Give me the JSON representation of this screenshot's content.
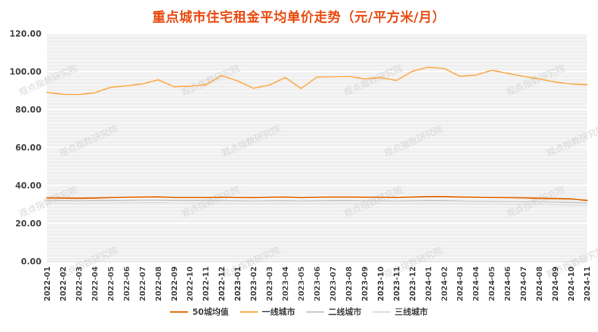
{
  "page": {
    "background": "#ffffff"
  },
  "chart_data": {
    "type": "line",
    "title": "重点城市住宅租金平均单价走势（元/平方米/月）",
    "title_color": "#e8490f",
    "watermark": "观点指数研究院",
    "grid": true,
    "legend_position": "bottom",
    "plot_background": "#efefef",
    "gridline_color": "#ffffff",
    "axis_label_color": "#3f3f3f",
    "ylim": [
      0,
      120
    ],
    "ytick_step": 20,
    "ytick_labels": [
      "0.00",
      "20.00",
      "40.00",
      "60.00",
      "80.00",
      "100.00",
      "120.00"
    ],
    "x": [
      "2022-01",
      "2022-02",
      "2022-03",
      "2022-04",
      "2022-05",
      "2022-06",
      "2022-07",
      "2022-08",
      "2022-09",
      "2022-10",
      "2022-11",
      "2022-12",
      "2023-01",
      "2023-02",
      "2023-03",
      "2023-04",
      "2023-05",
      "2023-06",
      "2023-07",
      "2023-08",
      "2023-09",
      "2023-10",
      "2023-11",
      "2023-12",
      "2024-01",
      "2024-02",
      "2024-03",
      "2024-04",
      "2024-05",
      "2024-06",
      "2024-07",
      "2024-08",
      "2024-09",
      "2024-10",
      "2024-11"
    ],
    "series": [
      {
        "name": "50城均值",
        "color": "#e26b0a",
        "width": 2,
        "values": [
          33.6,
          33.5,
          33.4,
          33.5,
          33.7,
          33.9,
          34.0,
          34.1,
          33.8,
          33.8,
          33.8,
          33.9,
          33.8,
          33.7,
          33.9,
          34.0,
          33.7,
          33.9,
          34.0,
          34.0,
          33.9,
          33.9,
          33.8,
          34.0,
          34.2,
          34.2,
          34.0,
          33.9,
          33.8,
          33.7,
          33.6,
          33.4,
          33.2,
          33.0,
          32.3
        ]
      },
      {
        "name": "一线城市",
        "color": "#fbab4c",
        "width": 1.8,
        "values": [
          89.2,
          88.1,
          88.0,
          88.9,
          91.8,
          92.6,
          93.6,
          95.8,
          92.1,
          92.4,
          93.2,
          98.0,
          95.2,
          91.3,
          93.0,
          97.0,
          91.2,
          97.2,
          97.3,
          97.6,
          96.2,
          97.0,
          95.4,
          100.2,
          102.4,
          101.8,
          97.6,
          98.2,
          100.8,
          99.2,
          97.6,
          96.2,
          94.6,
          93.6,
          93.2
        ]
      },
      {
        "name": "二线城市",
        "color": "#c8c8c8",
        "width": 1.5,
        "values": [
          32.2,
          32.1,
          32.0,
          32.1,
          32.2,
          32.3,
          32.4,
          32.4,
          32.2,
          32.2,
          32.2,
          32.1,
          32.0,
          31.9,
          32.0,
          32.1,
          31.9,
          32.0,
          32.1,
          32.1,
          32.0,
          32.0,
          31.9,
          32.0,
          32.1,
          32.1,
          31.9,
          31.8,
          31.8,
          31.7,
          31.6,
          31.5,
          31.3,
          31.2,
          30.9
        ]
      },
      {
        "name": "三线城市",
        "color": "#dddddd",
        "width": 1.3,
        "values": [
          30.9,
          30.8,
          30.7,
          30.8,
          30.9,
          31.0,
          31.0,
          31.1,
          30.9,
          30.8,
          30.8,
          30.7,
          30.6,
          30.5,
          30.6,
          30.7,
          30.5,
          30.6,
          30.6,
          30.6,
          30.5,
          30.5,
          30.4,
          30.5,
          30.6,
          30.6,
          30.4,
          30.3,
          30.3,
          30.2,
          30.1,
          30.0,
          29.9,
          29.8,
          29.6
        ]
      }
    ]
  }
}
